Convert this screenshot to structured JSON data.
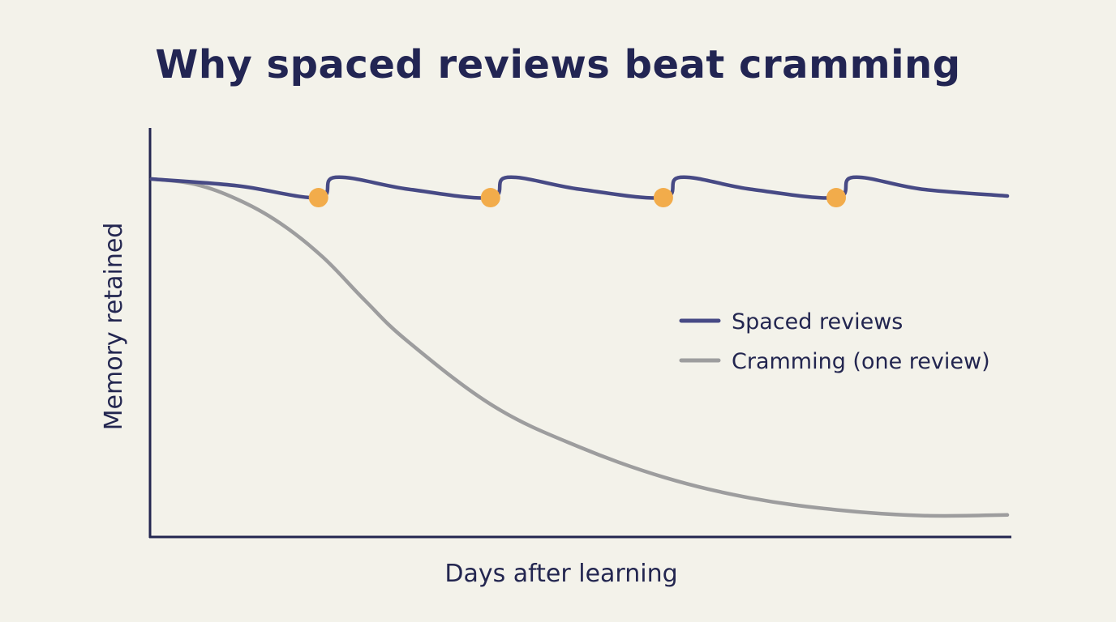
{
  "chart_data": {
    "type": "line",
    "title": "Why spaced reviews beat cramming",
    "xlabel": "Days after learning",
    "ylabel": "Memory retained",
    "xlim": [
      0,
      100
    ],
    "ylim": [
      0,
      100
    ],
    "grid": false,
    "legend_position": "right",
    "series": [
      {
        "name": "Spaced reviews",
        "color": "#474a85",
        "x": [
          0,
          10,
          19.5,
          21.5,
          30,
          39.6,
          41.6,
          50,
          59.8,
          61.8,
          70,
          80,
          82,
          90,
          100
        ],
        "y": [
          100,
          98,
          94.5,
          100.5,
          97,
          94.5,
          100.5,
          97,
          94.5,
          100.5,
          97,
          94.5,
          100.5,
          97,
          95
        ],
        "review_points": {
          "x": [
            19.5,
            39.6,
            59.8,
            80
          ],
          "y": [
            94.5,
            94.5,
            94.5,
            94.5
          ],
          "color": "#f2ac4b"
        }
      },
      {
        "name": "Cramming (one review)",
        "color": "#9d9d9e",
        "x": [
          0,
          5,
          10,
          15,
          20,
          25,
          30,
          40,
          50,
          60,
          70,
          80,
          90,
          100
        ],
        "y": [
          100,
          98.5,
          94,
          87,
          77,
          64,
          52,
          33,
          21,
          12,
          6,
          2.5,
          0.8,
          1
        ]
      }
    ]
  }
}
